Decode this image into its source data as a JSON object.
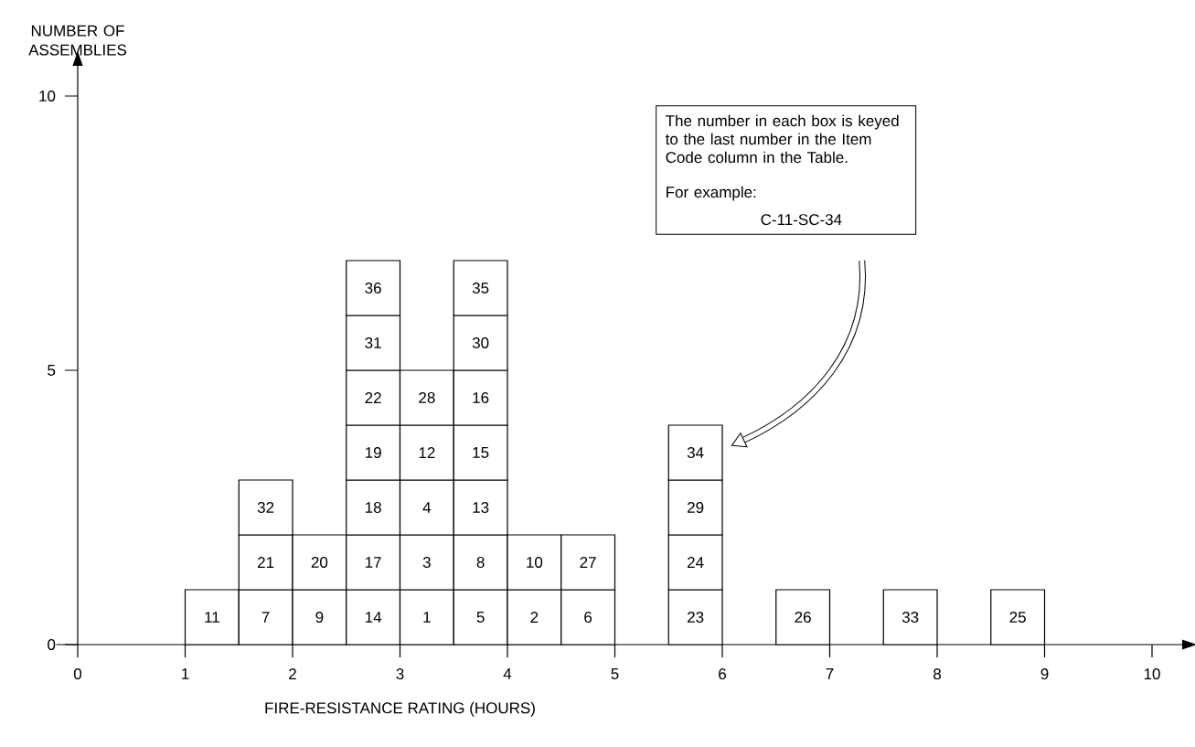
{
  "chart_data": {
    "type": "bar",
    "stacked": true,
    "xlabel": "FIRE-RESISTANCE RATING (HOURS)",
    "ylabel": "NUMBER OF ASSEMBLIES",
    "x": [
      1.25,
      1.75,
      2.25,
      2.75,
      3.25,
      3.75,
      4.25,
      4.75,
      5.75,
      6.75,
      7.75,
      8.75
    ],
    "xlim": [
      -0.2,
      10.28
    ],
    "ylim": [
      0,
      10.55
    ],
    "xticks": [
      0,
      1,
      2,
      3,
      4,
      5,
      6,
      7,
      8,
      9,
      10
    ],
    "yticks": [
      0,
      5,
      10
    ],
    "annotations": [
      "The number in each box is keyed to the last number in the Item Code column in the Table.",
      "For example:",
      "C-11-SC-34",
      {
        "text": "11",
        "x": 1.25,
        "y": 1
      },
      {
        "text": "7",
        "x": 1.75,
        "y": 1
      },
      {
        "text": "21",
        "x": 1.75,
        "y": 2
      },
      {
        "text": "32",
        "x": 1.75,
        "y": 3
      },
      {
        "text": "9",
        "x": 2.25,
        "y": 1
      },
      {
        "text": "20",
        "x": 2.25,
        "y": 2
      },
      {
        "text": "14",
        "x": 2.75,
        "y": 1
      },
      {
        "text": "17",
        "x": 2.75,
        "y": 2
      },
      {
        "text": "18",
        "x": 2.75,
        "y": 3
      },
      {
        "text": "19",
        "x": 2.75,
        "y": 4
      },
      {
        "text": "22",
        "x": 2.75,
        "y": 5
      },
      {
        "text": "31",
        "x": 2.75,
        "y": 6
      },
      {
        "text": "36",
        "x": 2.75,
        "y": 7
      },
      {
        "text": "1",
        "x": 3.25,
        "y": 1
      },
      {
        "text": "3",
        "x": 3.25,
        "y": 2
      },
      {
        "text": "4",
        "x": 3.25,
        "y": 3
      },
      {
        "text": "12",
        "x": 3.25,
        "y": 4
      },
      {
        "text": "28",
        "x": 3.25,
        "y": 5
      },
      {
        "text": "5",
        "x": 3.75,
        "y": 1
      },
      {
        "text": "8",
        "x": 3.75,
        "y": 2
      },
      {
        "text": "13",
        "x": 3.75,
        "y": 3
      },
      {
        "text": "15",
        "x": 3.75,
        "y": 4
      },
      {
        "text": "16",
        "x": 3.75,
        "y": 5
      },
      {
        "text": "30",
        "x": 3.75,
        "y": 6
      },
      {
        "text": "35",
        "x": 3.75,
        "y": 7
      },
      {
        "text": "2",
        "x": 4.25,
        "y": 1
      },
      {
        "text": "10",
        "x": 4.25,
        "y": 2
      },
      {
        "text": "6",
        "x": 4.75,
        "y": 1
      },
      {
        "text": "27",
        "x": 4.75,
        "y": 2
      },
      {
        "text": "23",
        "x": 5.75,
        "y": 1
      },
      {
        "text": "24",
        "x": 5.75,
        "y": 2
      },
      {
        "text": "29",
        "x": 5.75,
        "y": 3
      },
      {
        "text": "34",
        "x": 5.75,
        "y": 4
      },
      {
        "text": "26",
        "x": 6.75,
        "y": 1
      },
      {
        "text": "33",
        "x": 7.75,
        "y": 1
      },
      {
        "text": "25",
        "x": 8.75,
        "y": 1
      }
    ],
    "series": [
      {
        "color": "#ffffff",
        "values": [
          1,
          1,
          1,
          1,
          1,
          1,
          1,
          1,
          1,
          1,
          1,
          1
        ]
      },
      {
        "color": "#ffffff",
        "values": [
          null,
          1,
          1,
          1,
          1,
          1,
          1,
          1,
          1,
          null,
          null,
          null
        ]
      },
      {
        "color": "#ffffff",
        "values": [
          null,
          1,
          null,
          1,
          1,
          1,
          null,
          null,
          1,
          null,
          null,
          null
        ]
      },
      {
        "color": "#ffffff",
        "values": [
          null,
          null,
          null,
          1,
          1,
          1,
          null,
          null,
          1,
          null,
          null,
          null
        ]
      },
      {
        "color": "#ffffff",
        "values": [
          null,
          null,
          null,
          1,
          1,
          1,
          null,
          null,
          null,
          null,
          null,
          null
        ]
      },
      {
        "color": "#ffffff",
        "values": [
          null,
          null,
          null,
          1,
          null,
          1,
          null,
          null,
          null,
          null,
          null,
          null
        ]
      },
      {
        "color": "#ffffff",
        "values": [
          null,
          null,
          null,
          1,
          null,
          1,
          null,
          null,
          null,
          null,
          null,
          null
        ]
      }
    ]
  }
}
